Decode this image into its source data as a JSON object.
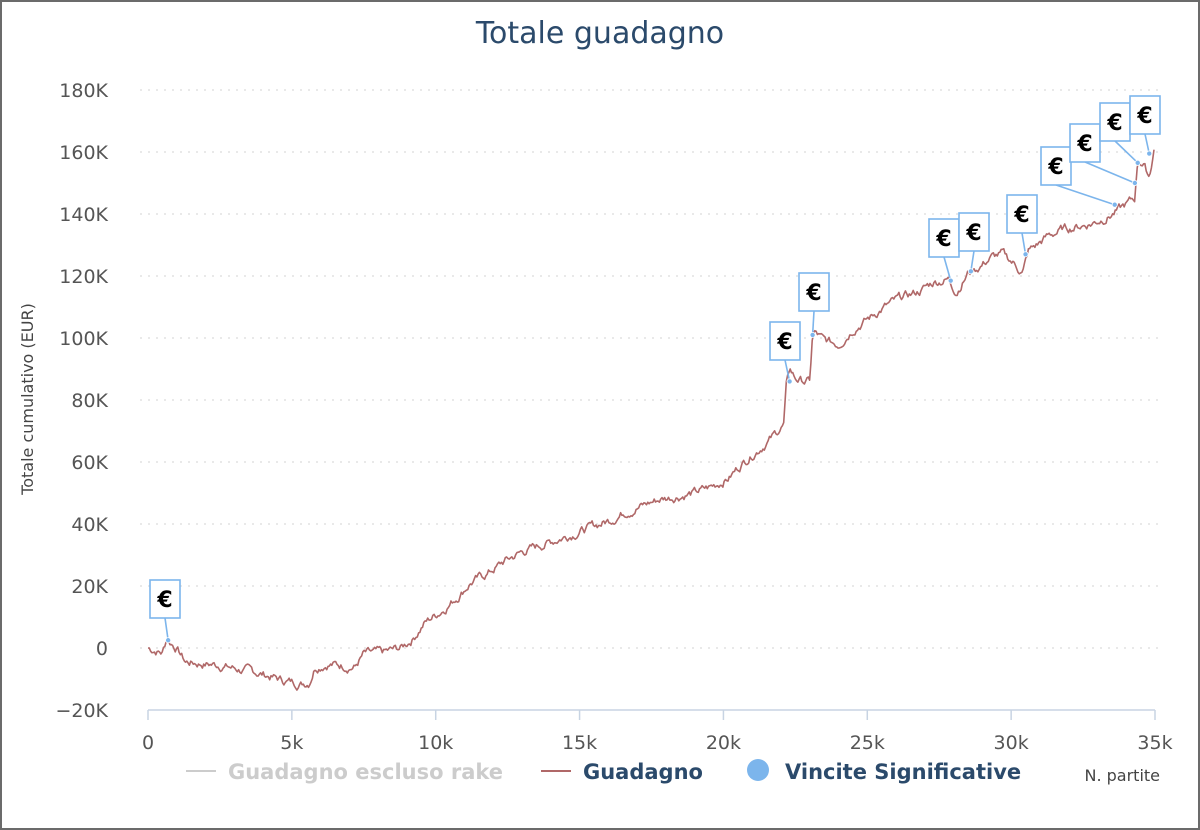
{
  "chart_data": {
    "type": "line",
    "title": "Totale guadagno",
    "xlabel": "N. partite",
    "ylabel": "Totale cumulativo (EUR)",
    "xlim": [
      0,
      35000
    ],
    "ylim": [
      -20000,
      180000
    ],
    "x_ticks": [
      0,
      5000,
      10000,
      15000,
      20000,
      25000,
      30000,
      35000
    ],
    "x_tick_labels": [
      "0",
      "5k",
      "10k",
      "15k",
      "20k",
      "25k",
      "30k",
      "35k"
    ],
    "y_ticks": [
      -20000,
      0,
      20000,
      40000,
      60000,
      80000,
      100000,
      120000,
      140000,
      160000,
      180000
    ],
    "y_tick_labels": [
      "−20K",
      "0",
      "20K",
      "40K",
      "60K",
      "80K",
      "100K",
      "120K",
      "140K",
      "160K",
      "180K"
    ],
    "grid": "horizontal dotted",
    "legend_position": "bottom",
    "series": [
      {
        "name": "Guadagno escluso rake",
        "color": "#cccccc",
        "visible": false,
        "x": [],
        "y": []
      },
      {
        "name": "Guadagno",
        "color": "#b06868",
        "x": [
          0,
          500,
          650,
          1000,
          1300,
          1800,
          2500,
          3200,
          3800,
          4200,
          4700,
          5300,
          5600,
          5800,
          6200,
          6600,
          7200,
          7500,
          8200,
          8800,
          9200,
          9600,
          10200,
          10700,
          11200,
          11800,
          12400,
          13000,
          13600,
          14200,
          14800,
          15400,
          16000,
          16600,
          17200,
          17800,
          18400,
          19000,
          19600,
          20200,
          20700,
          21200,
          21700,
          22100,
          22200,
          22300,
          22500,
          22800,
          23000,
          23100,
          23200,
          23500,
          24000,
          24500,
          25000,
          25600,
          26200,
          26800,
          27300,
          27800,
          28100,
          28500,
          28900,
          29300,
          29700,
          30100,
          30400,
          30600,
          30900,
          31300,
          31800,
          32300,
          32800,
          33300,
          33700,
          34000,
          34300,
          34400,
          34600,
          34800,
          35000
        ],
        "y": [
          0,
          -1500,
          3000,
          0,
          -4500,
          -5000,
          -5500,
          -7000,
          -8000,
          -9000,
          -10500,
          -11500,
          -11000,
          -6000,
          -5000,
          -5500,
          -6000,
          -2000,
          -1500,
          0,
          3000,
          8000,
          12000,
          16000,
          21000,
          24000,
          28000,
          31000,
          33000,
          35000,
          37000,
          39000,
          41000,
          44000,
          46000,
          48000,
          49000,
          50000,
          52000,
          55000,
          60000,
          64000,
          68000,
          72000,
          86000,
          90000,
          87000,
          86000,
          86000,
          101000,
          101500,
          99000,
          98000,
          103000,
          106000,
          110000,
          113000,
          115000,
          118000,
          119000,
          115000,
          121000,
          123000,
          126000,
          127000,
          124000,
          121000,
          128000,
          130000,
          133000,
          135000,
          136000,
          137000,
          139000,
          141000,
          143000,
          145000,
          158000,
          156000,
          152000,
          163000
        ]
      },
      {
        "name": "Vincite Significative",
        "color": "#7cb5ec",
        "type": "flags",
        "x": [
          700,
          22300,
          23100,
          27900,
          28600,
          30500,
          33600,
          34300,
          34400,
          34800
        ],
        "y": [
          2500,
          86000,
          101000,
          118500,
          121500,
          127000,
          143000,
          150000,
          156500,
          159500
        ],
        "flag_label": "€"
      }
    ]
  }
}
